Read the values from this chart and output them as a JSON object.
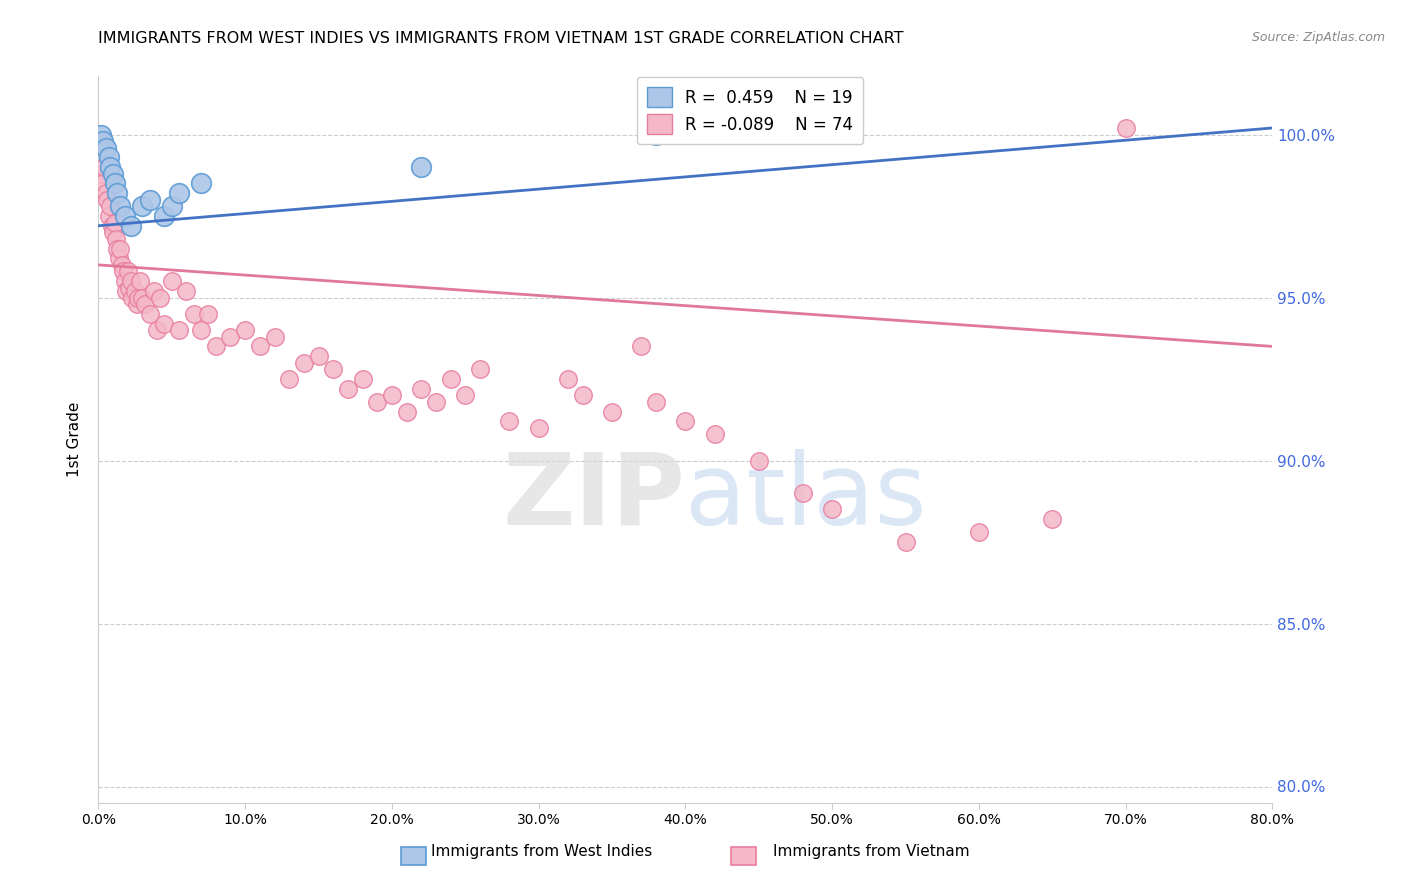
{
  "title": "IMMIGRANTS FROM WEST INDIES VS IMMIGRANTS FROM VIETNAM 1ST GRADE CORRELATION CHART",
  "source": "Source: ZipAtlas.com",
  "ylabel": "1st Grade",
  "legend_label_blue": "Immigrants from West Indies",
  "legend_label_pink": "Immigrants from Vietnam",
  "r_blue": 0.459,
  "n_blue": 19,
  "r_pink": -0.089,
  "n_pink": 74,
  "xmin": 0.0,
  "xmax": 80.0,
  "ymin": 79.5,
  "ymax": 101.8,
  "yticks": [
    80.0,
    85.0,
    90.0,
    95.0,
    100.0
  ],
  "xticks": [
    0.0,
    10.0,
    20.0,
    30.0,
    40.0,
    50.0,
    60.0,
    70.0,
    80.0
  ],
  "color_blue": "#adc6e8",
  "color_blue_edge": "#5b9bd5",
  "color_blue_line": "#4472c4",
  "color_pink": "#f4b8c8",
  "color_pink_edge": "#e87ca0",
  "color_pink_line": "#e07898",
  "color_right_axis": "#4169e1",
  "blue_points_x": [
    0.2,
    0.3,
    0.5,
    0.7,
    0.8,
    1.0,
    1.1,
    1.3,
    1.5,
    1.8,
    2.2,
    3.0,
    3.5,
    4.5,
    5.0,
    5.5,
    7.0,
    22.0,
    38.0
  ],
  "blue_points_y": [
    100.0,
    99.8,
    99.6,
    99.3,
    99.0,
    98.8,
    98.5,
    98.2,
    97.8,
    97.5,
    97.2,
    97.8,
    98.0,
    97.5,
    97.8,
    98.2,
    98.5,
    99.0,
    100.0
  ],
  "pink_points_x": [
    0.2,
    0.3,
    0.4,
    0.5,
    0.6,
    0.7,
    0.8,
    0.9,
    1.0,
    1.1,
    1.2,
    1.3,
    1.4,
    1.5,
    1.6,
    1.7,
    1.8,
    1.9,
    2.0,
    2.1,
    2.2,
    2.3,
    2.5,
    2.6,
    2.7,
    2.8,
    3.0,
    3.2,
    3.5,
    3.8,
    4.0,
    4.2,
    4.5,
    5.0,
    5.5,
    6.0,
    6.5,
    7.0,
    7.5,
    8.0,
    9.0,
    10.0,
    11.0,
    12.0,
    13.0,
    14.0,
    15.0,
    16.0,
    17.0,
    18.0,
    19.0,
    20.0,
    21.0,
    22.0,
    23.0,
    24.0,
    25.0,
    26.0,
    28.0,
    30.0,
    32.0,
    33.0,
    35.0,
    37.0,
    38.0,
    40.0,
    42.0,
    45.0,
    48.0,
    50.0,
    55.0,
    60.0,
    65.0,
    70.0
  ],
  "pink_points_y": [
    98.8,
    98.5,
    99.0,
    98.2,
    98.0,
    97.5,
    97.8,
    97.2,
    97.0,
    97.3,
    96.8,
    96.5,
    96.2,
    96.5,
    96.0,
    95.8,
    95.5,
    95.2,
    95.8,
    95.3,
    95.5,
    95.0,
    95.2,
    94.8,
    95.0,
    95.5,
    95.0,
    94.8,
    94.5,
    95.2,
    94.0,
    95.0,
    94.2,
    95.5,
    94.0,
    95.2,
    94.5,
    94.0,
    94.5,
    93.5,
    93.8,
    94.0,
    93.5,
    93.8,
    92.5,
    93.0,
    93.2,
    92.8,
    92.2,
    92.5,
    91.8,
    92.0,
    91.5,
    92.2,
    91.8,
    92.5,
    92.0,
    92.8,
    91.2,
    91.0,
    92.5,
    92.0,
    91.5,
    93.5,
    91.8,
    91.2,
    90.8,
    90.0,
    89.0,
    88.5,
    87.5,
    87.8,
    88.2,
    100.2
  ],
  "blue_trendline_x": [
    0.0,
    80.0
  ],
  "blue_trendline_y": [
    97.2,
    100.2
  ],
  "pink_trendline_x": [
    0.0,
    80.0
  ],
  "pink_trendline_y": [
    96.0,
    93.5
  ]
}
